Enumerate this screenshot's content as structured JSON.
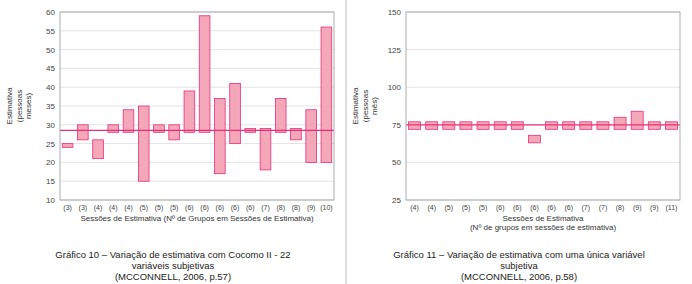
{
  "chart_data": [
    {
      "type": "bar",
      "title": "Gráfico 10 – Variação de estimativa com Cocomo II - 22\nvariáveis subjetivas\n(MCCONNELL, 2006, p.57)",
      "x_label": "Sessões de Estimativa (Nº de Grupos em Sessões de Estimativa)",
      "y_label": "Estimativa\n(pessoas\nmeses)",
      "categories": [
        "(3)",
        "(3)",
        "(4)",
        "(4)",
        "(4)",
        "(5)",
        "(5)",
        "(5)",
        "(6)",
        "(6)",
        "(6)",
        "(6)",
        "(6)",
        "(7)",
        "(8)",
        "(8)",
        "(9)",
        "(10)"
      ],
      "values": [
        25,
        30,
        26,
        30,
        34,
        35,
        30,
        30,
        39,
        59,
        37,
        41,
        29,
        29,
        37,
        29,
        34,
        56
      ],
      "bottoms": [
        24,
        26,
        21,
        28,
        28,
        15,
        28,
        26,
        28,
        28,
        17,
        25,
        28,
        18,
        28,
        26,
        20,
        20
      ],
      "color": "#f4a7b9",
      "reference_line": {
        "value": 28.5,
        "color": "#e8307a"
      },
      "ylim": [
        10,
        60
      ],
      "yticks": [
        10,
        15,
        20,
        25,
        30,
        35,
        40,
        45,
        50,
        55,
        60
      ],
      "grid": true
    },
    {
      "type": "bar",
      "title": "Gráfico 11 – Variação de estimativa com uma única variável\nsubjetiva\n(MCCONNELL, 2006, p.58)",
      "x_label": "Sessões de Estimativa\n(Nº de grupos em sessões de estimativa)",
      "y_label": "Estimativa\n(pessoas\nmês)",
      "categories": [
        "(4)",
        "(4)",
        "(5)",
        "(5)",
        "(5)",
        "(6)",
        "(6)",
        "(6)",
        "(6)",
        "(6)",
        "(7)",
        "(7)",
        "(8)",
        "(9)",
        "(9)",
        "(11)"
      ],
      "values": [
        77,
        77,
        77,
        77,
        77,
        77,
        77,
        68,
        77,
        77,
        77,
        77,
        80,
        84,
        77,
        77
      ],
      "bottoms": [
        72,
        72,
        72,
        72,
        72,
        72,
        72,
        63,
        72,
        72,
        72,
        72,
        72,
        72,
        72,
        72
      ],
      "color": "#f4a7b9",
      "reference_line": {
        "value": 75,
        "color": "#e8307a"
      },
      "ylim": [
        25,
        150
      ],
      "yticks": [
        25,
        50,
        75,
        100,
        125,
        150
      ],
      "grid": true
    }
  ]
}
